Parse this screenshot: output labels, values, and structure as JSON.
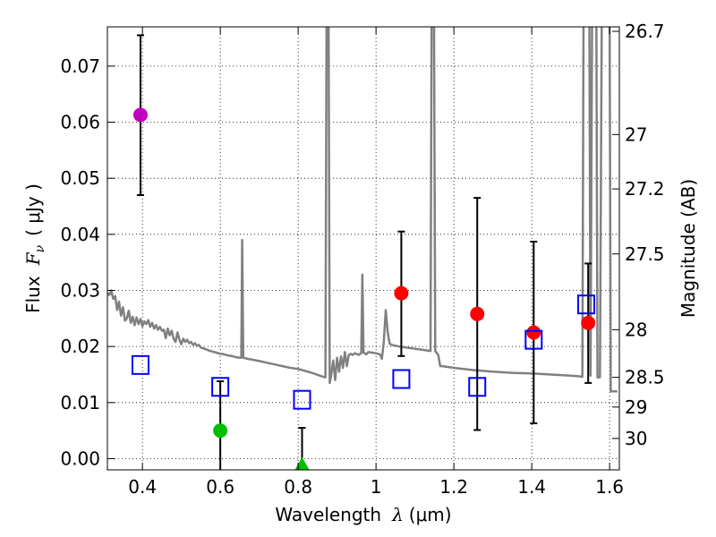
{
  "chart_data": {
    "type": "scatter",
    "xlabel_prefix": "Wavelength",
    "xlabel_symbol": "λ",
    "xlabel_unit": "(μm)",
    "ylabel_prefix": "Flux",
    "ylabel_symbol": "F",
    "ylabel_subscript": "ν",
    "ylabel_unit": "( μJy )",
    "y2label": "Magnitude (AB)",
    "xlim": [
      0.31,
      1.625
    ],
    "ylim": [
      -0.002,
      0.077
    ],
    "xticks": [
      0.4,
      0.6,
      0.8,
      1.0,
      1.2,
      1.4,
      1.6
    ],
    "xtick_labels": [
      "0.4",
      "0.6",
      "0.8",
      "1",
      "1.2",
      "1.4",
      "1.6"
    ],
    "yticks": [
      0.0,
      0.01,
      0.02,
      0.03,
      0.04,
      0.05,
      0.06,
      0.07
    ],
    "ytick_labels": [
      "0.00",
      "0.01",
      "0.02",
      "0.03",
      "0.04",
      "0.05",
      "0.06",
      "0.07"
    ],
    "y2_ticks": [
      {
        "label": "26.7",
        "flux": 0.0762
      },
      {
        "label": "27",
        "flux": 0.0578
      },
      {
        "label": "27.2",
        "flux": 0.0481
      },
      {
        "label": "27.5",
        "flux": 0.0365
      },
      {
        "label": "28",
        "flux": 0.023
      },
      {
        "label": "28.5",
        "flux": 0.0145
      },
      {
        "label": "29",
        "flux": 0.0092
      },
      {
        "label": "30",
        "flux": 0.0036
      }
    ],
    "grid": true,
    "colors": {
      "sed": "#808080",
      "magenta": "#bf00bf",
      "green": "#00bf00",
      "red": "#ff0000",
      "model": "#0000ff",
      "errorbar": "#000000",
      "grid": "#000000"
    },
    "series": [
      {
        "name": "magenta-detection",
        "marker": "circle",
        "color": "magenta",
        "points": [
          {
            "x": 0.395,
            "y": 0.0613,
            "yerr_lo": 0.047,
            "yerr_hi": 0.0755
          }
        ]
      },
      {
        "name": "green-detection",
        "marker": "circle",
        "color": "green",
        "points": [
          {
            "x": 0.6,
            "y": 0.005,
            "yerr_lo": -0.002,
            "yerr_hi": 0.0138
          }
        ]
      },
      {
        "name": "green-upper-limit",
        "marker": "triangle",
        "color": "green",
        "points": [
          {
            "x": 0.81,
            "y": -0.001,
            "yerr_lo": -0.002,
            "yerr_hi": 0.0055
          }
        ]
      },
      {
        "name": "red-detections",
        "marker": "circle",
        "color": "red",
        "points": [
          {
            "x": 1.065,
            "y": 0.0295,
            "yerr_lo": 0.0183,
            "yerr_hi": 0.0405
          },
          {
            "x": 1.26,
            "y": 0.0258,
            "yerr_lo": 0.0051,
            "yerr_hi": 0.0465
          },
          {
            "x": 1.405,
            "y": 0.0225,
            "yerr_lo": 0.0063,
            "yerr_hi": 0.0387
          },
          {
            "x": 1.545,
            "y": 0.0242,
            "yerr_lo": 0.0135,
            "yerr_hi": 0.0348
          }
        ]
      },
      {
        "name": "model-photometry",
        "marker": "square",
        "color": "model",
        "points": [
          {
            "x": 0.395,
            "y": 0.0167
          },
          {
            "x": 0.6,
            "y": 0.0128
          },
          {
            "x": 0.81,
            "y": 0.0105
          },
          {
            "x": 1.065,
            "y": 0.0142
          },
          {
            "x": 1.26,
            "y": 0.0128
          },
          {
            "x": 1.405,
            "y": 0.0212
          },
          {
            "x": 1.54,
            "y": 0.0275
          }
        ]
      },
      {
        "name": "sed-template",
        "type": "line",
        "color": "sed",
        "points": [
          [
            0.31,
            0.0295
          ],
          [
            0.315,
            0.0292
          ],
          [
            0.32,
            0.03
          ],
          [
            0.325,
            0.0285
          ],
          [
            0.33,
            0.029
          ],
          [
            0.335,
            0.0265
          ],
          [
            0.34,
            0.028
          ],
          [
            0.345,
            0.0255
          ],
          [
            0.35,
            0.027
          ],
          [
            0.355,
            0.0246
          ],
          [
            0.36,
            0.025
          ],
          [
            0.365,
            0.0264
          ],
          [
            0.37,
            0.0242
          ],
          [
            0.375,
            0.0253
          ],
          [
            0.38,
            0.0238
          ],
          [
            0.385,
            0.0252
          ],
          [
            0.39,
            0.024
          ],
          [
            0.395,
            0.0249
          ],
          [
            0.4,
            0.0236
          ],
          [
            0.405,
            0.0245
          ],
          [
            0.41,
            0.024
          ],
          [
            0.415,
            0.0247
          ],
          [
            0.42,
            0.0235
          ],
          [
            0.425,
            0.0242
          ],
          [
            0.43,
            0.0232
          ],
          [
            0.435,
            0.0238
          ],
          [
            0.44,
            0.023
          ],
          [
            0.445,
            0.0235
          ],
          [
            0.45,
            0.0228
          ],
          [
            0.455,
            0.023
          ],
          [
            0.46,
            0.0215
          ],
          [
            0.465,
            0.0232
          ],
          [
            0.47,
            0.022
          ],
          [
            0.475,
            0.0228
          ],
          [
            0.48,
            0.0214
          ],
          [
            0.485,
            0.0208
          ],
          [
            0.49,
            0.0225
          ],
          [
            0.495,
            0.0212
          ],
          [
            0.5,
            0.0204
          ],
          [
            0.505,
            0.0214
          ],
          [
            0.51,
            0.0208
          ],
          [
            0.515,
            0.0212
          ],
          [
            0.52,
            0.0206
          ],
          [
            0.525,
            0.0208
          ],
          [
            0.53,
            0.0203
          ],
          [
            0.535,
            0.0206
          ],
          [
            0.54,
            0.0201
          ],
          [
            0.545,
            0.0203
          ],
          [
            0.55,
            0.0198
          ],
          [
            0.56,
            0.0196
          ],
          [
            0.57,
            0.0193
          ],
          [
            0.58,
            0.0191
          ],
          [
            0.59,
            0.0189
          ],
          [
            0.6,
            0.0187
          ],
          [
            0.61,
            0.0186
          ],
          [
            0.62,
            0.0184
          ],
          [
            0.63,
            0.0183
          ],
          [
            0.64,
            0.0181
          ],
          [
            0.65,
            0.018
          ],
          [
            0.654,
            0.018
          ],
          [
            0.6563,
            0.039
          ],
          [
            0.659,
            0.018
          ],
          [
            0.67,
            0.0178
          ],
          [
            0.68,
            0.0177
          ],
          [
            0.7,
            0.0174
          ],
          [
            0.72,
            0.0171
          ],
          [
            0.74,
            0.0168
          ],
          [
            0.76,
            0.0165
          ],
          [
            0.78,
            0.0162
          ],
          [
            0.8,
            0.016
          ],
          [
            0.82,
            0.0156
          ],
          [
            0.84,
            0.0152
          ],
          [
            0.86,
            0.0147
          ],
          [
            0.87,
            0.0145
          ],
          [
            0.873,
            0.08
          ],
          [
            0.878,
            0.08
          ],
          [
            0.881,
            0.0135
          ],
          [
            0.885,
            0.015
          ],
          [
            0.89,
            0.0175
          ],
          [
            0.895,
            0.014
          ],
          [
            0.9,
            0.018
          ],
          [
            0.905,
            0.0155
          ],
          [
            0.91,
            0.0182
          ],
          [
            0.915,
            0.0162
          ],
          [
            0.92,
            0.019
          ],
          [
            0.925,
            0.0165
          ],
          [
            0.93,
            0.0185
          ],
          [
            0.935,
            0.0187
          ],
          [
            0.94,
            0.0185
          ],
          [
            0.945,
            0.0188
          ],
          [
            0.95,
            0.0187
          ],
          [
            0.955,
            0.0185
          ],
          [
            0.962,
            0.0188
          ],
          [
            0.965,
            0.0328
          ],
          [
            0.968,
            0.0189
          ],
          [
            0.975,
            0.0186
          ],
          [
            0.98,
            0.019
          ],
          [
            0.99,
            0.0189
          ],
          [
            1.0,
            0.0188
          ],
          [
            1.01,
            0.0186
          ],
          [
            1.015,
            0.0178
          ],
          [
            1.02,
            0.0208
          ],
          [
            1.025,
            0.0265
          ],
          [
            1.03,
            0.0225
          ],
          [
            1.035,
            0.0205
          ],
          [
            1.04,
            0.0203
          ],
          [
            1.06,
            0.02
          ],
          [
            1.08,
            0.0198
          ],
          [
            1.1,
            0.0196
          ],
          [
            1.12,
            0.0194
          ],
          [
            1.13,
            0.0193
          ],
          [
            1.14,
            0.0192
          ],
          [
            1.143,
            0.08
          ],
          [
            1.149,
            0.08
          ],
          [
            1.152,
            0.0192
          ],
          [
            1.16,
            0.0185
          ],
          [
            1.165,
            0.0165
          ],
          [
            1.17,
            0.0165
          ],
          [
            1.2,
            0.0162
          ],
          [
            1.25,
            0.0158
          ],
          [
            1.3,
            0.0155
          ],
          [
            1.35,
            0.0153
          ],
          [
            1.4,
            0.0152
          ],
          [
            1.45,
            0.015
          ],
          [
            1.5,
            0.0148
          ],
          [
            1.52,
            0.0147
          ],
          [
            1.53,
            0.0146
          ],
          [
            1.533,
            0.08
          ],
          [
            1.548,
            0.08
          ],
          [
            1.551,
            0.0148
          ],
          [
            1.555,
            0.08
          ],
          [
            1.566,
            0.08
          ],
          [
            1.569,
            0.0145
          ],
          [
            1.575,
            0.0145
          ],
          [
            1.58,
            0.08
          ],
          [
            1.6,
            0.08
          ],
          [
            1.603,
            0.012
          ],
          [
            1.62,
            0.012
          ]
        ]
      }
    ]
  }
}
